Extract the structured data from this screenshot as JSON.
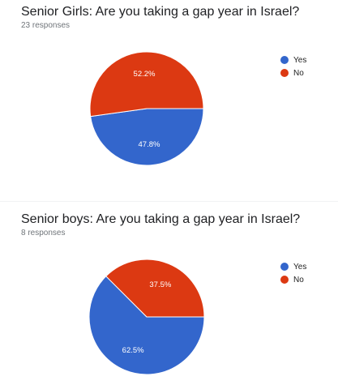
{
  "charts": [
    {
      "title": "Senior Girls: Are you taking a gap year in Israel?",
      "responses": "23 responses"
    },
    {
      "title": "Senior boys: Are you taking a gap year in Israel?",
      "responses": "8 responses"
    }
  ],
  "legend": [
    {
      "label": "Yes",
      "color": "#3366cc"
    },
    {
      "label": "No",
      "color": "#dc3912"
    }
  ],
  "chart_data": [
    {
      "type": "pie",
      "title": "Senior Girls: Are you taking a gap year in Israel?",
      "slices": [
        {
          "label": "Yes",
          "value": 47.8,
          "display": "47.8%",
          "color": "#3366cc"
        },
        {
          "label": "No",
          "value": 52.2,
          "display": "52.2%",
          "color": "#dc3912"
        }
      ],
      "legend_position": "top-right"
    },
    {
      "type": "pie",
      "title": "Senior boys: Are you taking a gap year in Israel?",
      "slices": [
        {
          "label": "Yes",
          "value": 62.5,
          "display": "62.5%",
          "color": "#3366cc"
        },
        {
          "label": "No",
          "value": 37.5,
          "display": "37.5%",
          "color": "#dc3912"
        }
      ],
      "legend_position": "top-right"
    }
  ]
}
